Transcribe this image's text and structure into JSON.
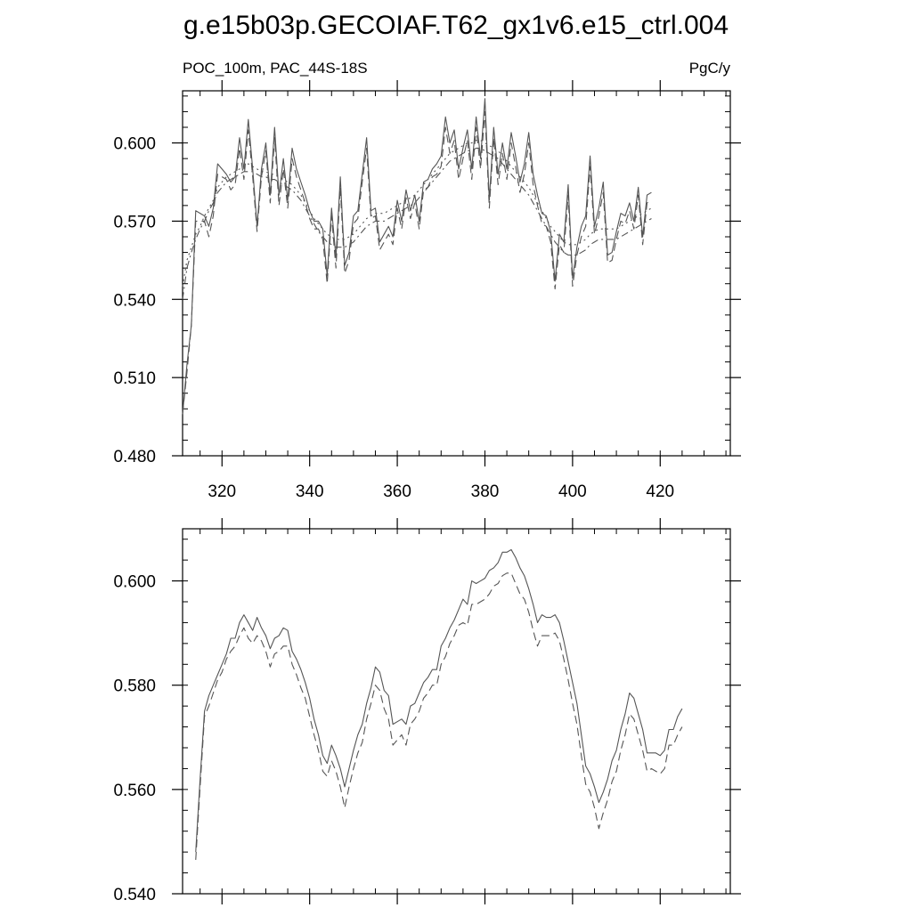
{
  "title": "g.e15b03p.GECOIAF.T62_gx1v6.e15_ctrl.004",
  "chart_data": [
    {
      "type": "line",
      "subtitle_left": "POC_100m, PAC_44S-18S",
      "subtitle_right": "PgC/y",
      "xlim": [
        311,
        436
      ],
      "ylim": [
        0.48,
        0.62
      ],
      "xticks": [
        320,
        340,
        360,
        380,
        400,
        420
      ],
      "xtick_labels": [
        "320",
        "340",
        "360",
        "380",
        "400",
        "420"
      ],
      "yticks": [
        0.48,
        0.51,
        0.54,
        0.57,
        0.6
      ],
      "ytick_labels": [
        "0.480",
        "0.510",
        "0.540",
        "0.570",
        "0.600"
      ],
      "x_start": 311,
      "series": [
        {
          "style": "solid",
          "color": "#555555",
          "values": [
            0.496,
            0.515,
            0.53,
            0.574,
            0.573,
            0.572,
            0.568,
            0.575,
            0.592,
            0.59,
            0.588,
            0.585,
            0.587,
            0.602,
            0.59,
            0.609,
            0.59,
            0.568,
            0.59,
            0.6,
            0.58,
            0.606,
            0.58,
            0.594,
            0.578,
            0.598,
            0.59,
            0.585,
            0.58,
            0.574,
            0.57,
            0.57,
            0.567,
            0.549,
            0.575,
            0.556,
            0.587,
            0.553,
            0.558,
            0.572,
            0.574,
            0.588,
            0.602,
            0.574,
            0.575,
            0.562,
            0.565,
            0.568,
            0.564,
            0.578,
            0.57,
            0.582,
            0.574,
            0.58,
            0.57,
            0.585,
            0.586,
            0.59,
            0.592,
            0.595,
            0.61,
            0.6,
            0.605,
            0.59,
            0.598,
            0.605,
            0.59,
            0.61,
            0.594,
            0.617,
            0.578,
            0.606,
            0.588,
            0.6,
            0.59,
            0.604,
            0.595,
            0.585,
            0.592,
            0.604,
            0.588,
            0.58,
            0.573,
            0.572,
            0.566,
            0.547,
            0.565,
            0.562,
            0.584,
            0.548,
            0.56,
            0.568,
            0.572,
            0.595,
            0.568,
            0.575,
            0.585,
            0.557,
            0.558,
            0.566,
            0.573,
            0.572,
            0.577,
            0.57,
            0.583,
            0.564,
            0.58,
            0.581
          ]
        },
        {
          "style": "dashed",
          "color": "#555555",
          "values": [
            0.496,
            0.512,
            0.53,
            0.57,
            0.57,
            0.57,
            0.564,
            0.572,
            0.588,
            0.587,
            0.586,
            0.582,
            0.584,
            0.598,
            0.586,
            0.605,
            0.587,
            0.566,
            0.587,
            0.597,
            0.577,
            0.602,
            0.576,
            0.59,
            0.575,
            0.594,
            0.587,
            0.582,
            0.577,
            0.571,
            0.567,
            0.567,
            0.563,
            0.546,
            0.572,
            0.552,
            0.583,
            0.55,
            0.555,
            0.569,
            0.571,
            0.585,
            0.598,
            0.571,
            0.572,
            0.559,
            0.562,
            0.565,
            0.561,
            0.575,
            0.567,
            0.579,
            0.571,
            0.577,
            0.567,
            0.582,
            0.583,
            0.587,
            0.588,
            0.591,
            0.606,
            0.596,
            0.601,
            0.586,
            0.594,
            0.601,
            0.586,
            0.606,
            0.59,
            0.612,
            0.575,
            0.602,
            0.584,
            0.596,
            0.586,
            0.6,
            0.591,
            0.581,
            0.588,
            0.6,
            0.584,
            0.576,
            0.569,
            0.568,
            0.562,
            0.544,
            0.561,
            0.558,
            0.58,
            0.545,
            0.557,
            0.564,
            0.568,
            0.591,
            0.565,
            0.572,
            0.581,
            0.554,
            0.555,
            0.563,
            0.57,
            0.569,
            0.574,
            0.567,
            0.58,
            0.561,
            0.577,
            0.578
          ]
        },
        {
          "style": "dotted",
          "color": "#555555",
          "values": [
            0.545,
            0.555,
            0.56,
            0.565,
            0.568,
            0.572,
            0.575,
            0.578,
            0.583,
            0.585,
            0.587,
            0.588,
            0.589,
            0.59,
            0.591,
            0.592,
            0.591,
            0.59,
            0.589,
            0.589,
            0.588,
            0.588,
            0.587,
            0.586,
            0.585,
            0.584,
            0.582,
            0.58,
            0.577,
            0.574,
            0.571,
            0.569,
            0.567,
            0.565,
            0.564,
            0.563,
            0.563,
            0.563,
            0.564,
            0.565,
            0.567,
            0.569,
            0.571,
            0.572,
            0.573,
            0.573,
            0.573,
            0.574,
            0.575,
            0.576,
            0.577,
            0.578,
            0.579,
            0.58,
            0.582,
            0.584,
            0.586,
            0.588,
            0.59,
            0.592,
            0.594,
            0.596,
            0.597,
            0.598,
            0.599,
            0.6,
            0.6,
            0.601,
            0.601,
            0.6,
            0.599,
            0.598,
            0.597,
            0.595,
            0.593,
            0.591,
            0.589,
            0.587,
            0.585,
            0.583,
            0.58,
            0.577,
            0.574,
            0.571,
            0.568,
            0.566,
            0.564,
            0.562,
            0.561,
            0.561,
            0.561,
            0.562,
            0.563,
            0.565,
            0.566,
            0.567,
            0.567,
            0.567,
            0.567,
            0.567,
            0.568,
            0.569,
            0.57,
            0.571,
            0.572,
            0.573,
            0.574,
            0.575
          ]
        },
        {
          "style": "dashdot",
          "color": "#555555",
          "values": [
            0.54,
            0.552,
            0.558,
            0.563,
            0.567,
            0.57,
            0.574,
            0.577,
            0.581,
            0.583,
            0.585,
            0.586,
            0.587,
            0.588,
            0.589,
            0.589,
            0.589,
            0.588,
            0.587,
            0.587,
            0.586,
            0.586,
            0.585,
            0.584,
            0.583,
            0.582,
            0.58,
            0.578,
            0.575,
            0.572,
            0.569,
            0.566,
            0.564,
            0.562,
            0.561,
            0.56,
            0.56,
            0.56,
            0.561,
            0.562,
            0.564,
            0.566,
            0.568,
            0.569,
            0.57,
            0.57,
            0.57,
            0.571,
            0.572,
            0.573,
            0.574,
            0.575,
            0.576,
            0.577,
            0.579,
            0.581,
            0.583,
            0.585,
            0.587,
            0.589,
            0.591,
            0.593,
            0.594,
            0.595,
            0.596,
            0.597,
            0.597,
            0.598,
            0.598,
            0.597,
            0.596,
            0.595,
            0.594,
            0.592,
            0.59,
            0.588,
            0.586,
            0.584,
            0.582,
            0.58,
            0.577,
            0.574,
            0.571,
            0.568,
            0.565,
            0.562,
            0.56,
            0.558,
            0.557,
            0.557,
            0.557,
            0.558,
            0.559,
            0.561,
            0.562,
            0.563,
            0.563,
            0.563,
            0.563,
            0.563,
            0.564,
            0.565,
            0.566,
            0.567,
            0.568,
            0.569,
            0.57,
            0.571
          ]
        }
      ]
    },
    {
      "type": "line",
      "xlim": [
        311,
        436
      ],
      "ylim": [
        0.54,
        0.61
      ],
      "xticks": [
        320,
        340,
        360,
        380,
        400,
        420
      ],
      "xtick_labels": [],
      "yticks": [
        0.54,
        0.56,
        0.58,
        0.6
      ],
      "ytick_labels": [
        "0.540",
        "0.560",
        "0.580",
        "0.600"
      ],
      "x_start": 314,
      "series": [
        {
          "style": "solid",
          "color": "#555555",
          "values": [
            0.548,
            0.562,
            0.575,
            0.578,
            0.58,
            0.582,
            0.584,
            0.586,
            0.589,
            0.589,
            0.592,
            0.5935,
            0.592,
            0.5905,
            0.593,
            0.591,
            0.5895,
            0.587,
            0.589,
            0.5895,
            0.591,
            0.5905,
            0.5865,
            0.585,
            0.583,
            0.5805,
            0.5775,
            0.5735,
            0.5705,
            0.5665,
            0.565,
            0.5685,
            0.5665,
            0.564,
            0.5605,
            0.564,
            0.5675,
            0.5705,
            0.5725,
            0.5765,
            0.5795,
            0.5835,
            0.5825,
            0.579,
            0.578,
            0.5725,
            0.573,
            0.5735,
            0.5725,
            0.576,
            0.5765,
            0.5785,
            0.5805,
            0.5815,
            0.583,
            0.583,
            0.5875,
            0.589,
            0.591,
            0.5925,
            0.5945,
            0.5965,
            0.5955,
            0.6,
            0.5995,
            0.6,
            0.6005,
            0.602,
            0.6025,
            0.6035,
            0.6055,
            0.6055,
            0.606,
            0.6045,
            0.6025,
            0.601,
            0.5985,
            0.5955,
            0.592,
            0.5935,
            0.593,
            0.593,
            0.5935,
            0.592,
            0.5885,
            0.5845,
            0.5805,
            0.5765,
            0.5705,
            0.5645,
            0.563,
            0.5605,
            0.5575,
            0.5595,
            0.562,
            0.5655,
            0.5675,
            0.5715,
            0.5745,
            0.5785,
            0.5775,
            0.5745,
            0.5715,
            0.567,
            0.567,
            0.567,
            0.5665,
            0.5675,
            0.5715,
            0.5715,
            0.574,
            0.5755
          ]
        },
        {
          "style": "dashed",
          "color": "#555555",
          "values": [
            0.5465,
            0.5605,
            0.574,
            0.576,
            0.5785,
            0.581,
            0.5825,
            0.585,
            0.5865,
            0.5875,
            0.5895,
            0.591,
            0.589,
            0.588,
            0.5895,
            0.5885,
            0.5865,
            0.5835,
            0.586,
            0.5865,
            0.5875,
            0.5875,
            0.584,
            0.582,
            0.5795,
            0.5775,
            0.574,
            0.5705,
            0.5675,
            0.5635,
            0.5625,
            0.5655,
            0.5635,
            0.5605,
            0.5565,
            0.5605,
            0.564,
            0.567,
            0.569,
            0.5735,
            0.5765,
            0.58,
            0.579,
            0.5755,
            0.5735,
            0.5685,
            0.5695,
            0.5705,
            0.5685,
            0.5725,
            0.5735,
            0.575,
            0.5775,
            0.5785,
            0.58,
            0.58,
            0.584,
            0.5855,
            0.588,
            0.5895,
            0.5915,
            0.592,
            0.5915,
            0.5955,
            0.5955,
            0.596,
            0.5965,
            0.5975,
            0.599,
            0.5995,
            0.601,
            0.6015,
            0.6015,
            0.5995,
            0.5975,
            0.5965,
            0.594,
            0.5905,
            0.5875,
            0.5895,
            0.5895,
            0.5895,
            0.59,
            0.5885,
            0.585,
            0.581,
            0.5765,
            0.5725,
            0.5665,
            0.561,
            0.5595,
            0.5565,
            0.5525,
            0.5555,
            0.558,
            0.5615,
            0.5635,
            0.5675,
            0.5705,
            0.5745,
            0.5735,
            0.5705,
            0.5675,
            0.5635,
            0.564,
            0.5635,
            0.563,
            0.564,
            0.5685,
            0.5685,
            0.5705,
            0.572
          ]
        }
      ]
    }
  ]
}
